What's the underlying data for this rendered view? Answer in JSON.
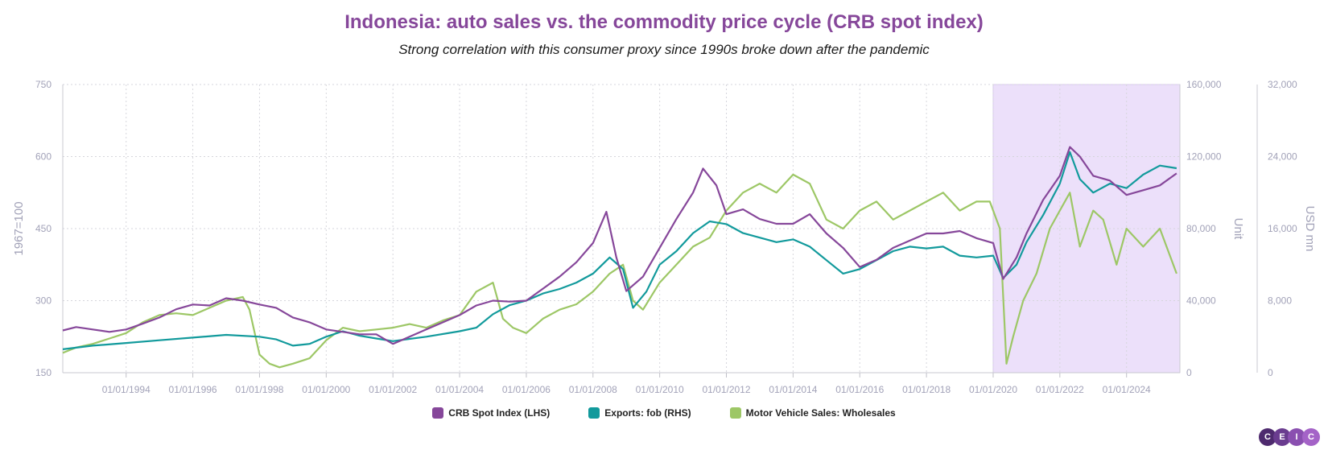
{
  "colors": {
    "crb": "#86479a",
    "exports": "#129a9c",
    "sales": "#9dc766",
    "shade": "#ece0fa",
    "title": "#86479a"
  },
  "chart_data": {
    "type": "line",
    "title": "Indonesia: auto sales vs. the commodity price cycle (CRB spot index)",
    "subtitle": "Strong correlation with this consumer proxy since 1990s broke down after the pandemic",
    "left_axis": {
      "label": "1967=100",
      "ylim": [
        150,
        750
      ],
      "ticks": [
        "150",
        "300",
        "450",
        "600",
        "750"
      ]
    },
    "unit_axis": {
      "label": "Unit",
      "ylim": [
        0,
        160000
      ],
      "ticks": [
        "0",
        "40,000",
        "80,000",
        "120,000",
        "160,000"
      ]
    },
    "usd_axis": {
      "label": "USD mn",
      "ylim": [
        0,
        32000
      ],
      "ticks": [
        "0",
        "8,000",
        "16,000",
        "24,000",
        "32,000"
      ]
    },
    "xlim": [
      1992.1,
      2025.6
    ],
    "x_tick_labels": [
      "01/01/1994",
      "01/01/1996",
      "01/01/1998",
      "01/01/2000",
      "01/01/2002",
      "01/01/2004",
      "01/01/2006",
      "01/01/2008",
      "01/01/2010",
      "01/01/2012",
      "01/01/2014",
      "01/01/2016",
      "01/01/2018",
      "01/01/2020",
      "01/01/2022",
      "01/01/2024"
    ],
    "shaded_period": [
      2020.0,
      2025.6
    ],
    "series": [
      {
        "name": "CRB Spot Index (LHS)",
        "axis": "left",
        "color_key": "crb",
        "x": [
          1992.1,
          1992.5,
          1993.0,
          1993.5,
          1994.0,
          1994.5,
          1995.0,
          1995.5,
          1996.0,
          1996.5,
          1997.0,
          1997.5,
          1998.0,
          1998.5,
          1999.0,
          1999.5,
          2000.0,
          2000.5,
          2001.0,
          2001.5,
          2002.0,
          2002.5,
          2003.0,
          2003.5,
          2004.0,
          2004.5,
          2005.0,
          2005.5,
          2006.0,
          2006.5,
          2007.0,
          2007.5,
          2008.0,
          2008.4,
          2008.7,
          2009.0,
          2009.5,
          2010.0,
          2010.5,
          2011.0,
          2011.3,
          2011.7,
          2012.0,
          2012.5,
          2013.0,
          2013.5,
          2014.0,
          2014.5,
          2015.0,
          2015.5,
          2016.0,
          2016.5,
          2017.0,
          2017.5,
          2018.0,
          2018.5,
          2019.0,
          2019.5,
          2020.0,
          2020.3,
          2020.7,
          2021.0,
          2021.5,
          2022.0,
          2022.3,
          2022.6,
          2023.0,
          2023.5,
          2024.0,
          2024.5,
          2025.0,
          2025.5
        ],
        "values": [
          238,
          245,
          240,
          235,
          240,
          252,
          265,
          282,
          292,
          290,
          305,
          300,
          292,
          285,
          265,
          255,
          240,
          235,
          230,
          230,
          210,
          225,
          240,
          255,
          270,
          290,
          300,
          298,
          300,
          325,
          350,
          380,
          420,
          485,
          390,
          320,
          350,
          410,
          470,
          525,
          575,
          540,
          480,
          490,
          470,
          460,
          460,
          480,
          440,
          410,
          370,
          385,
          410,
          425,
          440,
          440,
          445,
          430,
          420,
          345,
          390,
          440,
          510,
          560,
          620,
          600,
          560,
          550,
          520,
          530,
          540,
          565
        ]
      },
      {
        "name": "Exports: fob (RHS)",
        "axis": "usd",
        "color_key": "exports",
        "x": [
          1992.1,
          1993.0,
          1994.0,
          1995.0,
          1996.0,
          1997.0,
          1998.0,
          1998.5,
          1999.0,
          1999.5,
          2000.0,
          2000.5,
          2001.0,
          2001.5,
          2002.0,
          2003.0,
          2004.0,
          2004.5,
          2005.0,
          2005.5,
          2006.0,
          2006.5,
          2007.0,
          2007.5,
          2008.0,
          2008.5,
          2008.9,
          2009.2,
          2009.6,
          2010.0,
          2010.5,
          2011.0,
          2011.5,
          2012.0,
          2012.5,
          2013.0,
          2013.5,
          2014.0,
          2014.5,
          2015.0,
          2015.5,
          2016.0,
          2016.5,
          2017.0,
          2017.5,
          2018.0,
          2018.5,
          2019.0,
          2019.5,
          2020.0,
          2020.3,
          2020.7,
          2021.0,
          2021.5,
          2022.0,
          2022.3,
          2022.6,
          2023.0,
          2023.5,
          2024.0,
          2024.5,
          2025.0,
          2025.5
        ],
        "values": [
          2600,
          3000,
          3300,
          3600,
          3900,
          4200,
          4000,
          3700,
          3000,
          3200,
          4000,
          4600,
          4100,
          3800,
          3500,
          4000,
          4600,
          5000,
          6500,
          7500,
          8000,
          8800,
          9300,
          10000,
          11000,
          12800,
          11500,
          7200,
          9000,
          12000,
          13500,
          15500,
          16800,
          16500,
          15500,
          15000,
          14500,
          14800,
          14000,
          12500,
          11000,
          11500,
          12500,
          13500,
          14000,
          13800,
          14000,
          13000,
          12800,
          13000,
          10500,
          12000,
          14500,
          17500,
          21000,
          24500,
          21500,
          20000,
          21000,
          20500,
          22000,
          23000,
          22700
        ]
      },
      {
        "name": "Motor Vehicle Sales: Wholesales",
        "axis": "unit",
        "color_key": "sales",
        "x": [
          1992.1,
          1992.5,
          1993.0,
          1993.5,
          1994.0,
          1994.5,
          1995.0,
          1995.5,
          1996.0,
          1996.5,
          1997.0,
          1997.5,
          1997.7,
          1998.0,
          1998.3,
          1998.6,
          1999.0,
          1999.5,
          2000.0,
          2000.5,
          2001.0,
          2001.5,
          2002.0,
          2002.5,
          2003.0,
          2003.5,
          2004.0,
          2004.5,
          2005.0,
          2005.3,
          2005.6,
          2006.0,
          2006.5,
          2007.0,
          2007.5,
          2008.0,
          2008.5,
          2008.9,
          2009.2,
          2009.5,
          2010.0,
          2010.5,
          2011.0,
          2011.5,
          2012.0,
          2012.5,
          2013.0,
          2013.5,
          2014.0,
          2014.5,
          2015.0,
          2015.5,
          2016.0,
          2016.5,
          2017.0,
          2017.5,
          2018.0,
          2018.5,
          2019.0,
          2019.5,
          2019.9,
          2020.2,
          2020.4,
          2020.6,
          2020.9,
          2021.3,
          2021.7,
          2022.0,
          2022.3,
          2022.6,
          2023.0,
          2023.3,
          2023.7,
          2024.0,
          2024.5,
          2025.0,
          2025.5
        ],
        "values": [
          11000,
          14000,
          16000,
          19000,
          22000,
          28000,
          32000,
          33000,
          32000,
          36000,
          40000,
          42000,
          35000,
          10000,
          5000,
          3000,
          5000,
          8000,
          18000,
          25000,
          23000,
          24000,
          25000,
          27000,
          25000,
          29000,
          32000,
          45000,
          50000,
          30000,
          25000,
          22000,
          30000,
          35000,
          38000,
          45000,
          55000,
          60000,
          40000,
          35000,
          50000,
          60000,
          70000,
          75000,
          90000,
          100000,
          105000,
          100000,
          110000,
          105000,
          85000,
          80000,
          90000,
          95000,
          85000,
          90000,
          95000,
          100000,
          90000,
          95000,
          95000,
          80000,
          5000,
          20000,
          40000,
          55000,
          80000,
          90000,
          100000,
          70000,
          90000,
          85000,
          60000,
          80000,
          70000,
          80000,
          55000
        ]
      }
    ]
  },
  "legend": [
    "CRB Spot Index (LHS)",
    "Exports: fob (RHS)",
    "Motor Vehicle Sales: Wholesales"
  ],
  "logo": {
    "letters": [
      "C",
      "E",
      "I",
      "C"
    ],
    "colors": [
      "#4e2a6e",
      "#6a3c8f",
      "#8a4fb0",
      "#a463c7"
    ]
  }
}
